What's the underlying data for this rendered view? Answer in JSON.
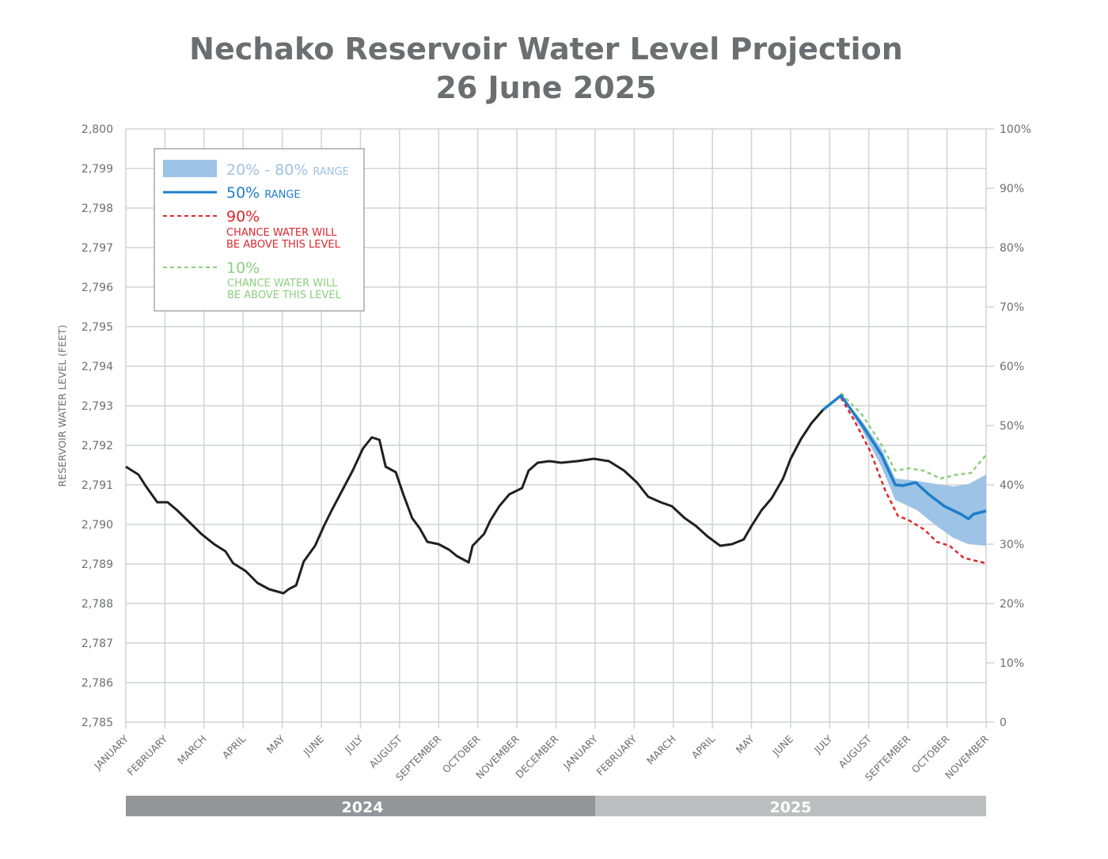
{
  "chart_data": {
    "type": "line",
    "title": "Nechako Reservoir Water Level Projection",
    "subtitle": "26 June 2025",
    "ylabel": "RESERVOIR WATER LEVEL (FEET)",
    "ylim": [
      2785,
      2800
    ],
    "yticks": [
      "2,785",
      "2,786",
      "2,787",
      "2,788",
      "2,789",
      "2,790",
      "2,791",
      "2,792",
      "2,793",
      "2,794",
      "2,795",
      "2,796",
      "2,797",
      "2,798",
      "2,799",
      "2,800"
    ],
    "y2ticks": [
      "0",
      "10%",
      "20%",
      "30%",
      "40%",
      "50%",
      "60%",
      "70%",
      "80%",
      "90%",
      "100%"
    ],
    "xlim": [
      "2024-01-01",
      "2025-11-01"
    ],
    "xticks": [
      "JANUARY",
      "FEBRUARY",
      "MARCH",
      "APRIL",
      "MAY",
      "JUNE",
      "JULY",
      "AUGUST",
      "SEPTEMBER",
      "OCTOBER",
      "NOVEMBER",
      "DECEMBER",
      "JANUARY",
      "FEBRUARY",
      "MARCH",
      "APRIL",
      "MAY",
      "JUNE",
      "JULY",
      "AUGUST",
      "SEPTEMBER",
      "OCTOBER",
      "NOVEMBER"
    ],
    "years": [
      "2024",
      "2025"
    ],
    "grid": true,
    "legend_position": "top-left",
    "colors": {
      "historical": "#231f20",
      "band": "#9dc3e6",
      "median": "#1f7fc8",
      "p90": "#e0262b",
      "p10": "#8ccf7e",
      "year2024": "#939598",
      "year2025": "#bcbec0",
      "grid": "#d1d3d4"
    },
    "legend": [
      {
        "big": "20% - 80%",
        "small": "RANGE"
      },
      {
        "big": "50%",
        "small": "RANGE"
      },
      {
        "big": "90%",
        "line1": "CHANCE WATER WILL",
        "line2": "BE ABOVE THIS LEVEL"
      },
      {
        "big": "10%",
        "line1": "CHANCE WATER WILL",
        "line2": "BE ABOVE THIS LEVEL"
      }
    ],
    "historical": [
      [
        "2024-01-01",
        2791.46
      ],
      [
        "2024-01-11",
        2791.26
      ],
      [
        "2024-01-17",
        2790.96
      ],
      [
        "2024-01-26",
        2790.56
      ],
      [
        "2024-02-03",
        2790.56
      ],
      [
        "2024-02-10",
        2790.36
      ],
      [
        "2024-02-19",
        2790.06
      ],
      [
        "2024-02-28",
        2789.76
      ],
      [
        "2024-03-09",
        2789.5
      ],
      [
        "2024-03-18",
        2789.32
      ],
      [
        "2024-03-24",
        2789.02
      ],
      [
        "2024-04-03",
        2788.82
      ],
      [
        "2024-04-12",
        2788.52
      ],
      [
        "2024-04-21",
        2788.36
      ],
      [
        "2024-05-02",
        2788.26
      ],
      [
        "2024-05-06",
        2788.36
      ],
      [
        "2024-05-12",
        2788.46
      ],
      [
        "2024-05-18",
        2789.06
      ],
      [
        "2024-05-27",
        2789.46
      ],
      [
        "2024-06-03",
        2789.96
      ],
      [
        "2024-06-09",
        2790.36
      ],
      [
        "2024-06-17",
        2790.86
      ],
      [
        "2024-06-25",
        2791.36
      ],
      [
        "2024-07-03",
        2791.92
      ],
      [
        "2024-07-10",
        2792.2
      ],
      [
        "2024-07-16",
        2792.14
      ],
      [
        "2024-07-21",
        2791.46
      ],
      [
        "2024-07-29",
        2791.32
      ],
      [
        "2024-08-04",
        2790.76
      ],
      [
        "2024-08-11",
        2790.16
      ],
      [
        "2024-08-17",
        2789.9
      ],
      [
        "2024-08-23",
        2789.56
      ],
      [
        "2024-09-01",
        2789.5
      ],
      [
        "2024-09-09",
        2789.36
      ],
      [
        "2024-09-15",
        2789.2
      ],
      [
        "2024-09-24",
        2789.04
      ],
      [
        "2024-09-27",
        2789.46
      ],
      [
        "2024-10-06",
        2789.76
      ],
      [
        "2024-10-11",
        2790.1
      ],
      [
        "2024-10-18",
        2790.46
      ],
      [
        "2024-10-26",
        2790.76
      ],
      [
        "2024-11-05",
        2790.92
      ],
      [
        "2024-11-10",
        2791.36
      ],
      [
        "2024-11-17",
        2791.56
      ],
      [
        "2024-11-26",
        2791.6
      ],
      [
        "2024-12-05",
        2791.56
      ],
      [
        "2024-12-18",
        2791.6
      ],
      [
        "2024-12-31",
        2791.66
      ],
      [
        "2025-01-12",
        2791.6
      ],
      [
        "2025-01-24",
        2791.36
      ],
      [
        "2025-02-03",
        2791.06
      ],
      [
        "2025-02-11",
        2790.7
      ],
      [
        "2025-02-20",
        2790.56
      ],
      [
        "2025-02-28",
        2790.46
      ],
      [
        "2025-03-10",
        2790.16
      ],
      [
        "2025-03-19",
        2789.96
      ],
      [
        "2025-03-28",
        2789.7
      ],
      [
        "2025-04-07",
        2789.46
      ],
      [
        "2025-04-16",
        2789.5
      ],
      [
        "2025-04-25",
        2789.62
      ],
      [
        "2025-05-01",
        2789.96
      ],
      [
        "2025-05-09",
        2790.36
      ],
      [
        "2025-05-17",
        2790.66
      ],
      [
        "2025-05-26",
        2791.16
      ],
      [
        "2025-06-01",
        2791.66
      ],
      [
        "2025-06-09",
        2792.16
      ],
      [
        "2025-06-17",
        2792.56
      ],
      [
        "2025-06-26",
        2792.9
      ]
    ],
    "median": [
      [
        "2025-06-26",
        2792.9
      ],
      [
        "2025-07-02",
        2793.06
      ],
      [
        "2025-07-10",
        2793.26
      ],
      [
        "2025-07-27",
        2792.5
      ],
      [
        "2025-08-11",
        2791.76
      ],
      [
        "2025-08-22",
        2791.0
      ],
      [
        "2025-08-28",
        2790.98
      ],
      [
        "2025-09-07",
        2791.06
      ],
      [
        "2025-09-17",
        2790.76
      ],
      [
        "2025-09-29",
        2790.46
      ],
      [
        "2025-10-12",
        2790.26
      ],
      [
        "2025-10-18",
        2790.14
      ],
      [
        "2025-10-22",
        2790.26
      ],
      [
        "2025-11-01",
        2790.34
      ]
    ],
    "p10": [
      [
        "2025-07-10",
        2793.32
      ],
      [
        "2025-07-27",
        2792.76
      ],
      [
        "2025-08-11",
        2792.02
      ],
      [
        "2025-08-22",
        2791.36
      ],
      [
        "2025-09-02",
        2791.42
      ],
      [
        "2025-09-13",
        2791.36
      ],
      [
        "2025-09-26",
        2791.16
      ],
      [
        "2025-10-09",
        2791.26
      ],
      [
        "2025-10-20",
        2791.3
      ],
      [
        "2025-11-01",
        2791.76
      ]
    ],
    "p90": [
      [
        "2025-07-10",
        2793.2
      ],
      [
        "2025-07-20",
        2792.66
      ],
      [
        "2025-08-02",
        2791.86
      ],
      [
        "2025-08-14",
        2790.86
      ],
      [
        "2025-08-24",
        2790.22
      ],
      [
        "2025-09-02",
        2790.1
      ],
      [
        "2025-09-14",
        2789.86
      ],
      [
        "2025-09-23",
        2789.56
      ],
      [
        "2025-10-03",
        2789.46
      ],
      [
        "2025-10-14",
        2789.16
      ],
      [
        "2025-10-21",
        2789.1
      ],
      [
        "2025-11-01",
        2789.02
      ]
    ],
    "band_upper": [
      [
        "2025-07-10",
        2793.26
      ],
      [
        "2025-07-27",
        2792.6
      ],
      [
        "2025-08-11",
        2791.92
      ],
      [
        "2025-08-22",
        2791.16
      ],
      [
        "2025-09-08",
        2791.1
      ],
      [
        "2025-09-23",
        2791.02
      ],
      [
        "2025-10-06",
        2790.96
      ],
      [
        "2025-10-18",
        2791.02
      ],
      [
        "2025-11-01",
        2791.26
      ]
    ],
    "band_lower": [
      [
        "2025-07-10",
        2793.26
      ],
      [
        "2025-07-27",
        2792.36
      ],
      [
        "2025-08-11",
        2791.46
      ],
      [
        "2025-08-22",
        2790.62
      ],
      [
        "2025-09-08",
        2790.36
      ],
      [
        "2025-09-23",
        2789.96
      ],
      [
        "2025-10-06",
        2789.66
      ],
      [
        "2025-10-18",
        2789.5
      ],
      [
        "2025-11-01",
        2789.46
      ]
    ]
  }
}
